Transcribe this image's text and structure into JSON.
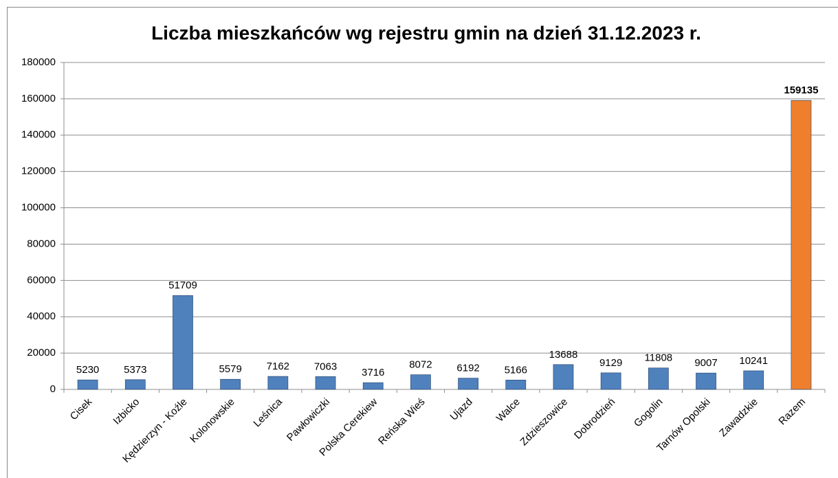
{
  "chart_data": {
    "type": "bar",
    "title": "Liczba mieszkańców wg rejestru gmin na dzień 31.12.2023 r.",
    "categories": [
      "Cisek",
      "Izbicko",
      "Kędzierzyn - Koźle",
      "Kolonowskie",
      "Leśnica",
      "Pawłowiczki",
      "Polska Cerekiew",
      "Reńska Wieś",
      "Ujazd",
      "Walce",
      "Zdzieszowice",
      "Dobrodzień",
      "Gogolin",
      "Tarnów Opolski",
      "Zawadzkie",
      "Razem"
    ],
    "values": [
      5230,
      5373,
      51709,
      5579,
      7162,
      7063,
      3716,
      8072,
      6192,
      5166,
      13688,
      9129,
      11808,
      9007,
      10241,
      159135
    ],
    "color": "#4f81bd",
    "colors": [
      "#4f81bd",
      "#4f81bd",
      "#4f81bd",
      "#4f81bd",
      "#4f81bd",
      "#4f81bd",
      "#4f81bd",
      "#4f81bd",
      "#4f81bd",
      "#4f81bd",
      "#4f81bd",
      "#4f81bd",
      "#4f81bd",
      "#4f81bd",
      "#4f81bd",
      "#f07f2d"
    ],
    "ylim": [
      0,
      180000
    ],
    "yticks": [
      0,
      20000,
      40000,
      60000,
      80000,
      100000,
      120000,
      140000,
      160000,
      180000
    ],
    "grid": true
  }
}
